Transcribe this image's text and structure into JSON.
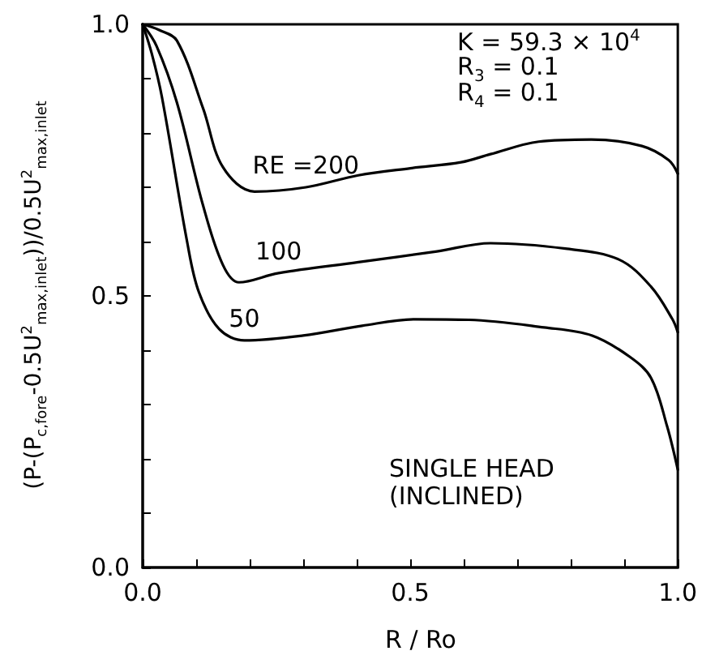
{
  "chart_data": {
    "type": "line",
    "xlabel": "R / Ro",
    "ylabel": "(P-(P$_{c,fore}$-0.5U$^{2}$$_{max,inlet}$))/0.5U$^{2}$$_{max,inlet}$",
    "xlim": [
      0,
      1
    ],
    "ylim": [
      0,
      1
    ],
    "xticks": [
      {
        "value": 0,
        "label": "0.0"
      },
      {
        "value": 0.1,
        "label": null
      },
      {
        "value": 0.2,
        "label": null
      },
      {
        "value": 0.3,
        "label": null
      },
      {
        "value": 0.4,
        "label": null
      },
      {
        "value": 0.5,
        "label": "0.5"
      },
      {
        "value": 0.6,
        "label": null
      },
      {
        "value": 0.7,
        "label": null
      },
      {
        "value": 0.8,
        "label": null
      },
      {
        "value": 0.9,
        "label": null
      },
      {
        "value": 1,
        "label": "1.0"
      }
    ],
    "yticks": [
      {
        "value": 0,
        "label": "0.0"
      },
      {
        "value": 0.1,
        "label": null
      },
      {
        "value": 0.2,
        "label": null
      },
      {
        "value": 0.3,
        "label": null
      },
      {
        "value": 0.4,
        "label": null
      },
      {
        "value": 0.5,
        "label": "0.5"
      },
      {
        "value": 0.6,
        "label": null
      },
      {
        "value": 0.7,
        "label": null
      },
      {
        "value": 0.8,
        "label": null
      },
      {
        "value": 0.9,
        "label": null
      },
      {
        "value": 1,
        "label": "1.0"
      }
    ],
    "grid": false,
    "marker": "none",
    "line_style": "solid",
    "series": [
      {
        "name": "RE =200",
        "color": "#000000",
        "x": [
          0,
          0.03,
          0.064,
          0.113,
          0.15,
          0.209,
          0.305,
          0.403,
          0.5,
          0.595,
          0.65,
          0.74,
          0.838,
          0.933,
          0.983,
          1.0
        ],
        "values": [
          1.0,
          0.99,
          0.97,
          0.845,
          0.737,
          0.692,
          0.7,
          0.722,
          0.735,
          0.746,
          0.761,
          0.784,
          0.788,
          0.776,
          0.75,
          0.725
        ]
      },
      {
        "name": "100",
        "color": "#000000",
        "x": [
          0,
          0.026,
          0.064,
          0.113,
          0.15,
          0.18,
          0.254,
          0.403,
          0.55,
          0.65,
          0.79,
          0.89,
          0.95,
          0.99,
          1.0
        ],
        "values": [
          1.0,
          0.96,
          0.856,
          0.666,
          0.557,
          0.525,
          0.542,
          0.562,
          0.582,
          0.597,
          0.587,
          0.567,
          0.517,
          0.457,
          0.433
        ]
      },
      {
        "name": "50",
        "color": "#000000",
        "x": [
          0,
          0.017,
          0.036,
          0.083,
          0.105,
          0.143,
          0.19,
          0.3,
          0.41,
          0.51,
          0.61,
          0.75,
          0.84,
          0.91,
          0.95,
          0.98,
          1.0
        ],
        "values": [
          1.0,
          0.946,
          0.866,
          0.6,
          0.507,
          0.439,
          0.418,
          0.427,
          0.445,
          0.457,
          0.456,
          0.442,
          0.427,
          0.388,
          0.349,
          0.26,
          0.18
        ]
      }
    ],
    "annotations": [
      "K = 59.3 × 10$^{4}$",
      "R$_{3}$ = 0.1",
      "R$_{4}$ = 0.1",
      "SINGLE  HEAD",
      "(INCLINED)"
    ]
  }
}
